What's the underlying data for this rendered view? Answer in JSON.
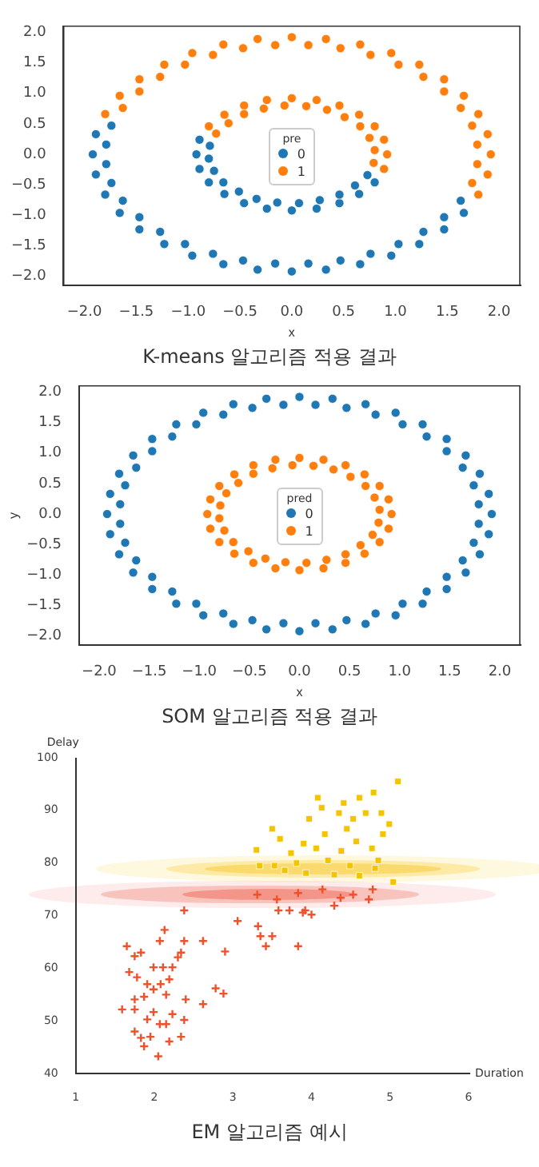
{
  "chart_data": [
    {
      "type": "scatter",
      "title": "K-means 알고리즘 적용 결과",
      "xlabel": "x",
      "legend_title": "pre",
      "legend": "center",
      "grid": false,
      "marker": "circle",
      "xlim": [
        -2.2,
        2.2
      ],
      "xticks": [
        {
          "value": -2,
          "label": "−2.0"
        },
        {
          "value": -1.5,
          "label": "−1.5"
        },
        {
          "value": -1,
          "label": "−1.0"
        },
        {
          "value": -0.5,
          "label": "−0.5"
        },
        {
          "value": 0,
          "label": "0.0"
        },
        {
          "value": 0.5,
          "label": "0.5"
        },
        {
          "value": 1,
          "label": "1.0"
        },
        {
          "value": 1.5,
          "label": "1.5"
        },
        {
          "value": 2,
          "label": "2.0"
        }
      ],
      "ylim": [
        -2.15,
        2.1
      ],
      "yticks": [
        {
          "value": -2,
          "label": "−2.0"
        },
        {
          "value": -1.5,
          "label": "−1.5"
        },
        {
          "value": -1,
          "label": "−1.0"
        },
        {
          "value": -0.5,
          "label": "−0.5"
        },
        {
          "value": 0,
          "label": "0.0"
        },
        {
          "value": 0.5,
          "label": "0.5"
        },
        {
          "value": 1,
          "label": "1.0"
        },
        {
          "value": 1.5,
          "label": "1.5"
        },
        {
          "value": 2,
          "label": "2.0"
        }
      ],
      "series": [
        {
          "name": "0",
          "color": "#1f77b4",
          "x": [
            -1.74,
            -1.89,
            -1.79,
            -1.92,
            -1.79,
            -1.89,
            -1.74,
            -1.8,
            -1.63,
            -1.66,
            -1.47,
            -1.47,
            -1.27,
            -1.23,
            -1.03,
            -0.96,
            -0.76,
            -0.66,
            -0.47,
            -0.33,
            -0.16,
            0,
            0.16,
            0.33,
            0.47,
            0.66,
            0.76,
            0.96,
            1.03,
            1.23,
            1.27,
            1.47,
            1.47,
            1.66,
            1.63,
            -0.89,
            -0.79,
            -0.92,
            -0.8,
            -0.89,
            -0.75,
            -0.8,
            -0.66,
            -0.65,
            -0.51,
            -0.46,
            -0.34,
            -0.24,
            -0.14,
            0,
            0.07,
            0.24,
            0.27,
            0.46,
            0.46,
            0.65,
            0.61,
            0.8,
            0.73
          ],
          "values": [
            0.47,
            0.33,
            0.16,
            0,
            -0.16,
            -0.33,
            -0.47,
            -0.66,
            -0.76,
            -0.96,
            -1.03,
            -1.23,
            -1.27,
            -1.47,
            -1.47,
            -1.66,
            -1.63,
            -1.8,
            -1.74,
            -1.89,
            -1.79,
            -1.92,
            -1.79,
            -1.89,
            -1.74,
            -1.8,
            -1.63,
            -1.66,
            -1.47,
            -1.47,
            -1.27,
            -1.23,
            -1.03,
            -0.96,
            -0.76,
            0.24,
            0.14,
            0,
            -0.07,
            -0.24,
            -0.27,
            -0.46,
            -0.46,
            -0.65,
            -0.61,
            -0.8,
            -0.73,
            -0.89,
            -0.79,
            -0.92,
            -0.8,
            -0.89,
            -0.75,
            -0.8,
            -0.66,
            -0.65,
            -0.51,
            -0.46,
            -0.34
          ]
        },
        {
          "name": "1",
          "color": "#ff7f0e",
          "x": [
            1.8,
            1.74,
            1.89,
            1.79,
            1.92,
            1.79,
            1.89,
            1.74,
            1.8,
            1.63,
            1.66,
            1.47,
            1.47,
            1.27,
            1.23,
            1.03,
            0.96,
            0.76,
            0.66,
            0.47,
            0.33,
            0.16,
            0,
            -0.16,
            -0.33,
            -0.47,
            -0.66,
            -0.76,
            -0.96,
            -1.03,
            -1.23,
            -1.27,
            -1.47,
            -1.47,
            -1.66,
            -1.63,
            -1.8,
            0.89,
            0.79,
            0.92,
            0.8,
            0.89,
            0.75,
            0.8,
            0.66,
            0.65,
            0.51,
            0.46,
            0.34,
            0.24,
            0.14,
            0,
            -0.07,
            -0.24,
            -0.27,
            -0.46,
            -0.46,
            -0.65,
            -0.61,
            -0.8,
            -0.73
          ],
          "values": [
            -0.66,
            -0.47,
            -0.33,
            -0.16,
            0,
            0.16,
            0.33,
            0.47,
            0.66,
            0.76,
            0.96,
            1.03,
            1.23,
            1.27,
            1.47,
            1.47,
            1.66,
            1.63,
            1.8,
            1.74,
            1.89,
            1.79,
            1.92,
            1.79,
            1.89,
            1.74,
            1.8,
            1.63,
            1.66,
            1.47,
            1.47,
            1.27,
            1.23,
            1.03,
            0.96,
            0.76,
            0.66,
            -0.24,
            -0.14,
            0,
            0.07,
            0.24,
            0.27,
            0.46,
            0.46,
            0.65,
            0.61,
            0.8,
            0.73,
            0.89,
            0.79,
            0.92,
            0.8,
            0.89,
            0.75,
            0.8,
            0.66,
            0.65,
            0.51,
            0.46,
            0.34
          ]
        }
      ]
    },
    {
      "type": "scatter",
      "title": "SOM 알고리즘 적용 결과",
      "xlabel": "x",
      "ylabel": "y",
      "legend_title": "pred",
      "legend": "center",
      "grid": false,
      "marker": "circle",
      "xlim": [
        -2.2,
        2.2
      ],
      "xticks": [
        {
          "value": -2,
          "label": "−2.0"
        },
        {
          "value": -1.5,
          "label": "−1.5"
        },
        {
          "value": -1,
          "label": "−1.0"
        },
        {
          "value": -0.5,
          "label": "−0.5"
        },
        {
          "value": 0,
          "label": "0.0"
        },
        {
          "value": 0.5,
          "label": "0.5"
        },
        {
          "value": 1,
          "label": "1.0"
        },
        {
          "value": 1.5,
          "label": "1.5"
        },
        {
          "value": 2,
          "label": "2.0"
        }
      ],
      "ylim": [
        -2.15,
        2.1
      ],
      "yticks": [
        {
          "value": -2,
          "label": "−2.0"
        },
        {
          "value": -1.5,
          "label": "−1.5"
        },
        {
          "value": -1,
          "label": "−1.0"
        },
        {
          "value": -0.5,
          "label": "−0.5"
        },
        {
          "value": 0,
          "label": "0.0"
        },
        {
          "value": 0.5,
          "label": "0.5"
        },
        {
          "value": 1,
          "label": "1.0"
        },
        {
          "value": 1.5,
          "label": "1.5"
        },
        {
          "value": 2,
          "label": "2.0"
        }
      ],
      "series": [
        {
          "name": "0",
          "color": "#1f77b4",
          "x": [
            -1.74,
            -1.89,
            -1.79,
            -1.92,
            -1.79,
            -1.89,
            -1.74,
            -1.8,
            -1.63,
            -1.66,
            -1.47,
            -1.47,
            -1.27,
            -1.23,
            -1.03,
            -0.96,
            -0.76,
            -0.66,
            -0.47,
            -0.33,
            -0.16,
            0,
            0.16,
            0.33,
            0.47,
            0.66,
            0.76,
            0.96,
            1.03,
            1.23,
            1.27,
            1.47,
            1.47,
            1.66,
            1.63,
            1.8,
            1.74,
            1.89,
            1.79,
            1.92,
            1.79,
            1.89,
            1.74,
            1.8,
            1.63,
            1.66,
            1.47,
            1.47,
            1.27,
            1.23,
            1.03,
            0.96,
            0.76,
            0.66,
            0.47,
            0.33,
            0.16,
            0,
            -0.16,
            -0.33,
            -0.47,
            -0.66,
            -0.76,
            -0.96,
            -1.03,
            -1.23,
            -1.27,
            -1.47,
            -1.47,
            -1.66,
            -1.63,
            -1.8
          ],
          "values": [
            0.47,
            0.33,
            0.16,
            0,
            -0.16,
            -0.33,
            -0.47,
            -0.66,
            -0.76,
            -0.96,
            -1.03,
            -1.23,
            -1.27,
            -1.47,
            -1.47,
            -1.66,
            -1.63,
            -1.8,
            -1.74,
            -1.89,
            -1.79,
            -1.92,
            -1.79,
            -1.89,
            -1.74,
            -1.8,
            -1.63,
            -1.66,
            -1.47,
            -1.47,
            -1.27,
            -1.23,
            -1.03,
            -0.96,
            -0.76,
            -0.66,
            -0.47,
            -0.33,
            -0.16,
            0,
            0.16,
            0.33,
            0.47,
            0.66,
            0.76,
            0.96,
            1.03,
            1.23,
            1.27,
            1.47,
            1.47,
            1.66,
            1.63,
            1.8,
            1.74,
            1.89,
            1.79,
            1.92,
            1.79,
            1.89,
            1.74,
            1.8,
            1.63,
            1.66,
            1.47,
            1.47,
            1.27,
            1.23,
            1.03,
            0.96,
            0.76,
            0.66
          ]
        },
        {
          "name": "1",
          "color": "#ff7f0e",
          "x": [
            -0.89,
            -0.79,
            -0.92,
            -0.8,
            -0.89,
            -0.75,
            -0.8,
            -0.66,
            -0.65,
            -0.51,
            -0.46,
            -0.34,
            -0.24,
            -0.14,
            0,
            0.07,
            0.24,
            0.27,
            0.46,
            0.46,
            0.65,
            0.61,
            0.8,
            0.73,
            0.89,
            0.79,
            0.92,
            0.8,
            0.89,
            0.75,
            0.8,
            0.66,
            0.65,
            0.51,
            0.46,
            0.34,
            0.24,
            0.14,
            0,
            -0.07,
            -0.24,
            -0.27,
            -0.46,
            -0.46,
            -0.65,
            -0.61,
            -0.8,
            -0.73
          ],
          "values": [
            0.24,
            0.14,
            0,
            -0.07,
            -0.24,
            -0.27,
            -0.46,
            -0.46,
            -0.65,
            -0.61,
            -0.8,
            -0.73,
            -0.89,
            -0.79,
            -0.92,
            -0.8,
            -0.89,
            -0.75,
            -0.8,
            -0.66,
            -0.65,
            -0.51,
            -0.46,
            -0.34,
            -0.24,
            -0.14,
            0,
            0.07,
            0.24,
            0.27,
            0.46,
            0.46,
            0.65,
            0.61,
            0.8,
            0.73,
            0.89,
            0.79,
            0.92,
            0.8,
            0.89,
            0.75,
            0.8,
            0.66,
            0.65,
            0.51,
            0.46,
            0.34
          ]
        }
      ]
    },
    {
      "type": "scatter",
      "title": "EM 알고리즘 예시",
      "xlabel": "Duration",
      "ylabel": "Delay",
      "grid": false,
      "xlim": [
        1,
        6
      ],
      "xticks": [
        1,
        2,
        3,
        4,
        5,
        6
      ],
      "ylim": [
        40,
        100
      ],
      "yticks": [
        40,
        50,
        60,
        70,
        80,
        90,
        100
      ],
      "series": [
        {
          "color": "#f0502a",
          "marker": "cross",
          "x": [
            2.38,
            3.06,
            3.32,
            3.35,
            3.5,
            3.42,
            3.83,
            3.58,
            3.72,
            3.56,
            3.92,
            4.0,
            3.89,
            3.31,
            3.83,
            4.14,
            4.37,
            4.53,
            4.73,
            4.78,
            4.29,
            2.9,
            2.62,
            2.38,
            2.13,
            2.07,
            1.65,
            1.75,
            1.83,
            1.68,
            1.78,
            1.99,
            2.11,
            2.23,
            2.19,
            1.91,
            2.08,
            2.34,
            2.3,
            2.4,
            2.62,
            2.78,
            2.88,
            1.59,
            1.75,
            1.87,
            1.99,
            2.15,
            1.75,
            1.99,
            1.91,
            2.07,
            2.23,
            2.38,
            1.75,
            1.83,
            1.95,
            1.87,
            2.19,
            2.34,
            2.05,
            2.15
          ],
          "values": [
            71,
            69,
            68,
            66.1,
            66.1,
            64.2,
            64.2,
            71,
            71,
            73.1,
            71,
            70.2,
            70.6,
            74,
            74.3,
            75,
            73.4,
            74,
            73.1,
            75,
            71.9,
            63.2,
            65.2,
            65.2,
            67.3,
            65.2,
            64.2,
            62.3,
            63,
            59.3,
            58.3,
            60.2,
            60.2,
            60.2,
            57.9,
            57,
            57,
            63,
            62.1,
            54.1,
            53.2,
            56.2,
            55.2,
            52.2,
            54.1,
            54.6,
            56,
            55,
            52.2,
            51.7,
            50.3,
            49.4,
            51.3,
            50.2,
            48,
            46.8,
            47,
            45.2,
            46.1,
            47,
            43.3,
            49.4
          ]
        },
        {
          "color": "#f5c400",
          "marker": "square",
          "x": [
            5.1,
            4.08,
            4.61,
            4.79,
            4.41,
            4.13,
            3.97,
            4.69,
            4.35,
            4.53,
            4.89,
            4.99,
            3.5,
            4.17,
            4.45,
            4.91,
            3.3,
            3.6,
            3.9,
            4.57,
            3.74,
            4.06,
            4.38,
            4.77,
            3.53,
            3.81,
            4.21,
            4.49,
            4.81,
            3.93,
            4.29,
            4.61,
            5.04,
            3.34,
            3.66,
            4.85
          ],
          "values": [
            95.5,
            92.4,
            92.4,
            93.4,
            91.4,
            90.5,
            88.4,
            89.5,
            89.5,
            88.4,
            89.5,
            87.4,
            86.5,
            85.5,
            86.5,
            85.5,
            82.5,
            84.6,
            83.7,
            84.1,
            81.9,
            82.8,
            82.3,
            82.8,
            79.5,
            80,
            80.5,
            79.5,
            79,
            78.1,
            77.8,
            77.6,
            76.4,
            79.5,
            78.6,
            80.5
          ]
        }
      ]
    }
  ]
}
